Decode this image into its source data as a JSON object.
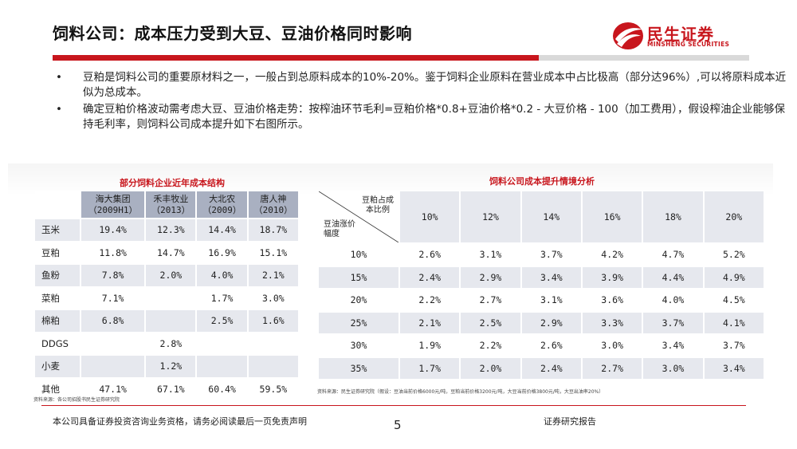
{
  "header": {
    "title": "饲料公司：成本压力受到大豆、豆油价格同时影响",
    "logo_text": "民生证券",
    "logo_sub": "MINSHENG SECURITIES"
  },
  "bullets": {
    "marker": "•",
    "items": [
      "豆粕是饲料公司的重要原材料之一，一般占到总原料成本的10%-20%。鉴于饲料企业原料在营业成本中占比极高（部分达96%）,可以将原料成本近似为总成本。",
      "确定豆粕价格波动需考虑大豆、豆油价格走势：按榨油环节毛利=豆粕价格*0.8+豆油价格*0.2 - 大豆价格 - 100（加工费用），假设榨油企业能够保持毛利率，则饲料公司成本提升如下右图所示。"
    ]
  },
  "left_table": {
    "title": "部分饲料企业近年成本结构",
    "columns": [
      {
        "name": "海大集团",
        "year": "（2009H1）"
      },
      {
        "name": "禾丰牧业",
        "year": "（2013）"
      },
      {
        "name": "大北农",
        "year": "（2009）"
      },
      {
        "name": "唐人神",
        "year": "（2010）"
      }
    ],
    "rows": [
      {
        "label": "玉米",
        "values": [
          "19.4%",
          "12.3%",
          "14.4%",
          "18.7%"
        ]
      },
      {
        "label": "豆粕",
        "values": [
          "11.8%",
          "14.7%",
          "16.9%",
          "15.1%"
        ]
      },
      {
        "label": "鱼粉",
        "values": [
          "7.8%",
          "2.0%",
          "4.0%",
          "2.1%"
        ]
      },
      {
        "label": "菜粕",
        "values": [
          "7.1%",
          "",
          "1.7%",
          "3.0%"
        ]
      },
      {
        "label": "棉粕",
        "values": [
          "6.8%",
          "",
          "2.5%",
          "1.6%"
        ]
      },
      {
        "label": "DDGS",
        "values": [
          "",
          "2.8%",
          "",
          ""
        ]
      },
      {
        "label": "小麦",
        "values": [
          "",
          "1.2%",
          "",
          ""
        ]
      },
      {
        "label": "其他",
        "values": [
          "47.1%",
          "67.1%",
          "60.4%",
          "59.5%"
        ]
      }
    ],
    "source": "资料来源：各公司招股书民生证券研究院"
  },
  "right_table": {
    "title": "饲料公司成本提升情境分析",
    "corner_top": "豆粕占成\n本比例",
    "corner_bottom": "豆油涨价\n幅度",
    "columns": [
      "10%",
      "12%",
      "14%",
      "16%",
      "18%",
      "20%"
    ],
    "rows": [
      {
        "label": "10%",
        "values": [
          "2.6%",
          "3.1%",
          "3.7%",
          "4.2%",
          "4.7%",
          "5.2%"
        ]
      },
      {
        "label": "15%",
        "values": [
          "2.4%",
          "2.9%",
          "3.4%",
          "3.9%",
          "4.4%",
          "4.9%"
        ]
      },
      {
        "label": "20%",
        "values": [
          "2.2%",
          "2.7%",
          "3.1%",
          "3.6%",
          "4.0%",
          "4.5%"
        ]
      },
      {
        "label": "25%",
        "values": [
          "2.1%",
          "2.5%",
          "2.9%",
          "3.3%",
          "3.7%",
          "4.1%"
        ]
      },
      {
        "label": "30%",
        "values": [
          "1.9%",
          "2.2%",
          "2.6%",
          "3.0%",
          "3.4%",
          "3.7%"
        ]
      },
      {
        "label": "35%",
        "values": [
          "1.7%",
          "2.0%",
          "2.4%",
          "2.7%",
          "3.0%",
          "3.4%"
        ]
      }
    ],
    "source": "资料来源：民生证券研究院（假设：豆油当前价格6000元/吨，豆粕当前价格3200元/吨，大豆当前价格3800元/吨，大豆出油率20%）"
  },
  "footer": {
    "disclaimer": "本公司具备证券投资咨询业务资格，请务必阅读最后一页免责声明",
    "page": "5",
    "report_type": "证券研究报告"
  },
  "colors": {
    "brand_red": "#c8161d",
    "header_fill": "#a9b0c1",
    "stripe": "#e6e8ee"
  }
}
